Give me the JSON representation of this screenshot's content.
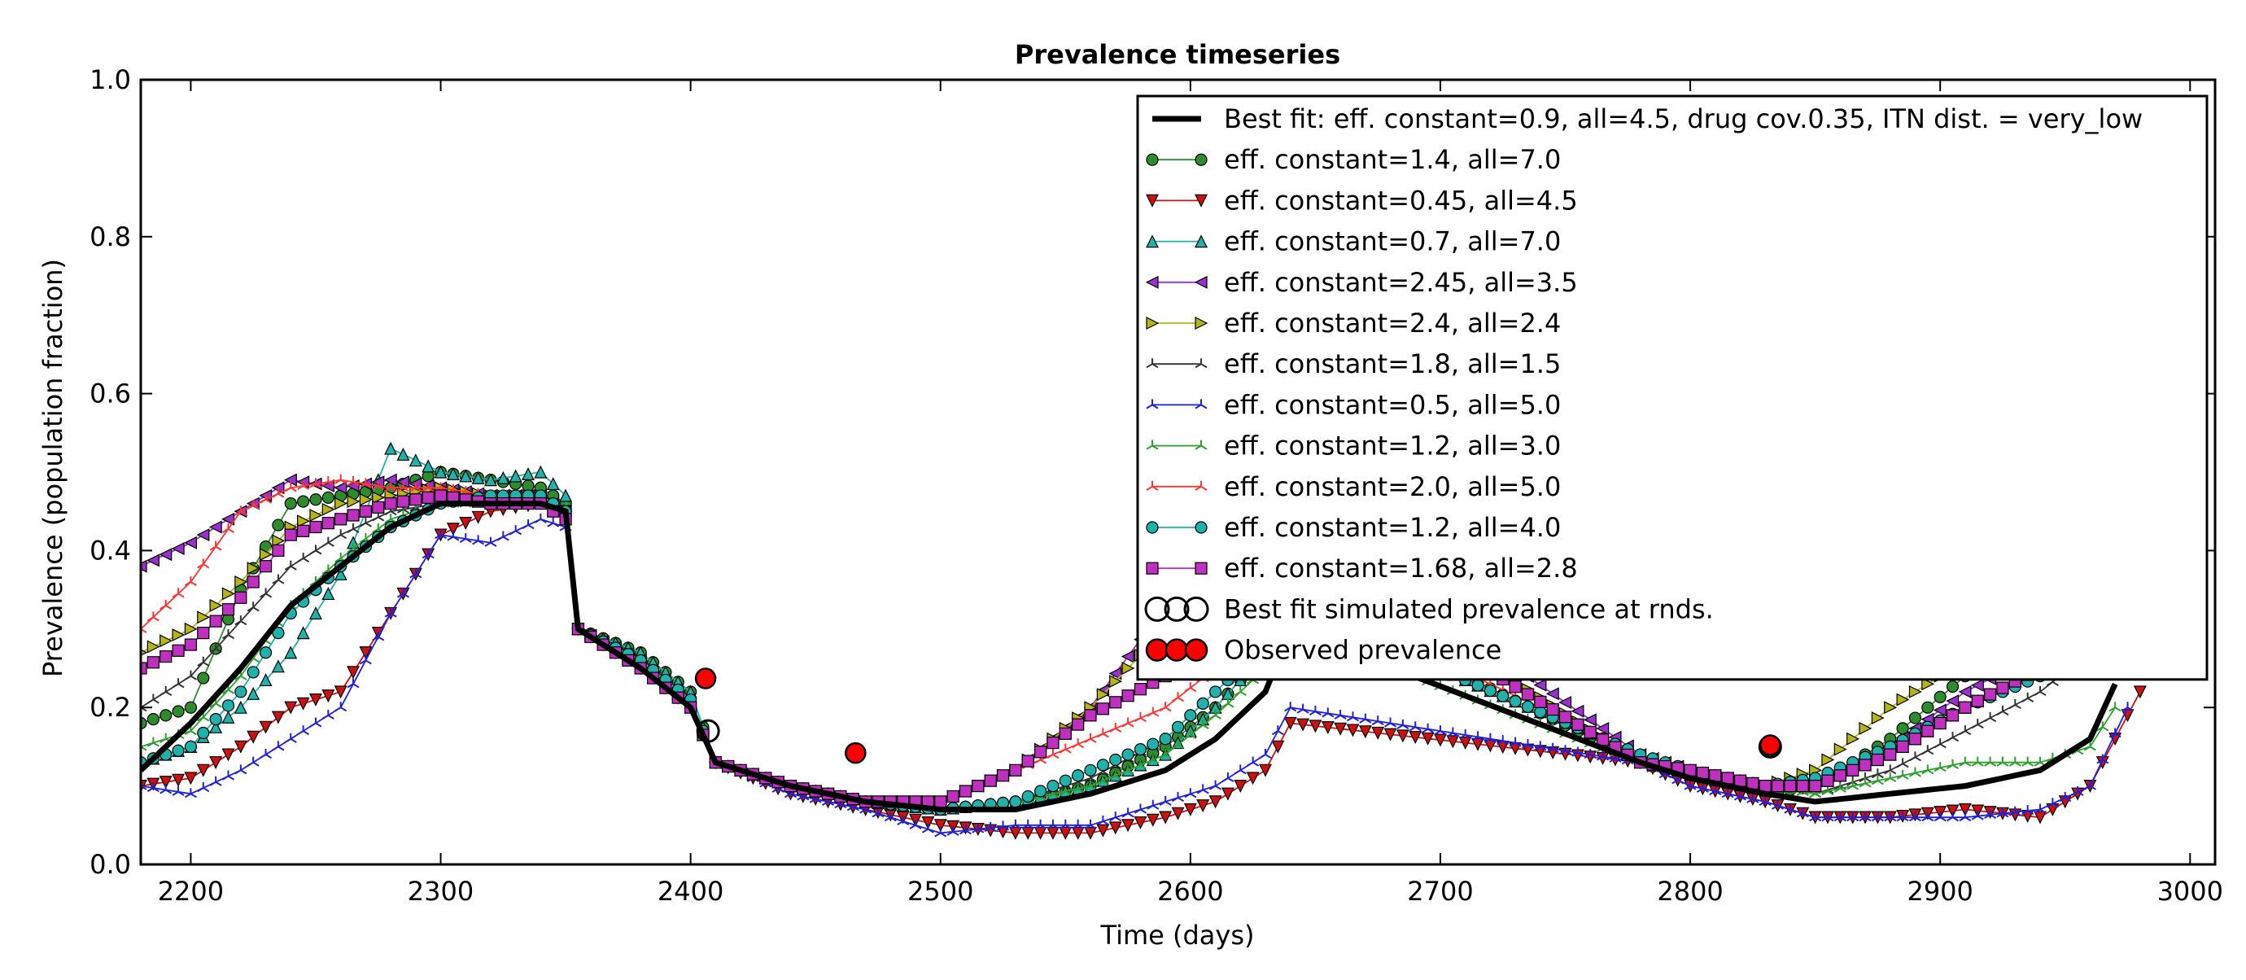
{
  "chart_data": {
    "type": "line",
    "title": "Prevalence timeseries",
    "xlabel": "Time (days)",
    "ylabel": "Prevalence (population fraction)",
    "xlim": [
      2180,
      3010
    ],
    "ylim": [
      0.0,
      1.0
    ],
    "xticks": [
      2200,
      2300,
      2400,
      2500,
      2600,
      2700,
      2800,
      2900,
      3000
    ],
    "xtick_labels": [
      "2200",
      "2300",
      "2400",
      "2500",
      "2600",
      "2700",
      "2800",
      "2900",
      "3000"
    ],
    "yticks": [
      0.0,
      0.2,
      0.4,
      0.6,
      0.8,
      1.0
    ],
    "ytick_labels": [
      "0.0",
      "0.2",
      "0.4",
      "0.6",
      "0.8",
      "1.0"
    ],
    "grid": false,
    "legend_position": "top-right",
    "series": [
      {
        "name": "Best fit: eff. constant=0.9, all=4.5, drug cov.0.35, ITN dist. = very_low",
        "color": "#000000",
        "marker": "none",
        "style": "bold",
        "x": [
          2180,
          2200,
          2220,
          2240,
          2260,
          2280,
          2300,
          2320,
          2340,
          2350,
          2355,
          2380,
          2400,
          2410,
          2440,
          2470,
          2500,
          2530,
          2560,
          2590,
          2610,
          2630,
          2640,
          2780,
          2800,
          2830,
          2850,
          2880,
          2910,
          2940,
          2960,
          2970
        ],
        "y": [
          0.12,
          0.18,
          0.25,
          0.33,
          0.38,
          0.43,
          0.46,
          0.46,
          0.46,
          0.45,
          0.3,
          0.25,
          0.2,
          0.13,
          0.1,
          0.08,
          0.07,
          0.07,
          0.09,
          0.12,
          0.16,
          0.22,
          0.3,
          0.13,
          0.11,
          0.09,
          0.08,
          0.09,
          0.1,
          0.12,
          0.16,
          0.23
        ]
      },
      {
        "name": "eff. constant=1.4, all=7.0",
        "color": "#2e8b2e",
        "marker": "circle",
        "x": [
          2180,
          2200,
          2220,
          2240,
          2260,
          2280,
          2300,
          2320,
          2340,
          2350,
          2355,
          2380,
          2400,
          2410,
          2440,
          2470,
          2500,
          2530,
          2560,
          2590,
          2610,
          2630,
          2640,
          2780,
          2800,
          2830,
          2850,
          2880,
          2910,
          2940,
          2960,
          2970
        ],
        "y": [
          0.18,
          0.2,
          0.35,
          0.46,
          0.47,
          0.48,
          0.5,
          0.49,
          0.48,
          0.46,
          0.3,
          0.27,
          0.22,
          0.13,
          0.1,
          0.08,
          0.07,
          0.08,
          0.1,
          0.15,
          0.2,
          0.27,
          0.35,
          0.13,
          0.11,
          0.09,
          0.1,
          0.16,
          0.24,
          0.3,
          0.33,
          0.35
        ]
      },
      {
        "name": "eff. constant=0.45, all=4.5",
        "color": "#cc1111",
        "marker": "triangle-down",
        "x": [
          2180,
          2200,
          2220,
          2240,
          2260,
          2280,
          2300,
          2320,
          2340,
          2350,
          2355,
          2380,
          2400,
          2410,
          2440,
          2470,
          2500,
          2530,
          2560,
          2590,
          2610,
          2630,
          2640,
          2780,
          2800,
          2830,
          2850,
          2880,
          2910,
          2940,
          2960,
          2980
        ],
        "y": [
          0.1,
          0.11,
          0.15,
          0.2,
          0.22,
          0.32,
          0.42,
          0.45,
          0.46,
          0.45,
          0.3,
          0.25,
          0.2,
          0.13,
          0.09,
          0.07,
          0.05,
          0.04,
          0.04,
          0.06,
          0.08,
          0.12,
          0.18,
          0.13,
          0.1,
          0.08,
          0.06,
          0.06,
          0.07,
          0.06,
          0.1,
          0.22
        ]
      },
      {
        "name": "eff. constant=0.7, all=7.0",
        "color": "#20b2aa",
        "marker": "triangle-up",
        "x": [
          2180,
          2200,
          2220,
          2240,
          2260,
          2280,
          2300,
          2320,
          2340,
          2350,
          2355,
          2380,
          2400,
          2410,
          2440,
          2470,
          2500,
          2530,
          2560,
          2590,
          2610,
          2630,
          2640,
          2780,
          2800,
          2830,
          2850,
          2880,
          2910,
          2940,
          2960,
          2970
        ],
        "y": [
          0.13,
          0.15,
          0.2,
          0.27,
          0.37,
          0.53,
          0.5,
          0.49,
          0.5,
          0.47,
          0.3,
          0.27,
          0.22,
          0.13,
          0.1,
          0.08,
          0.07,
          0.08,
          0.1,
          0.14,
          0.2,
          0.27,
          0.33,
          0.14,
          0.12,
          0.1,
          0.1,
          0.14,
          0.2,
          0.25,
          0.3,
          0.33
        ]
      },
      {
        "name": "eff. constant=2.45, all=3.5",
        "color": "#9932cc",
        "marker": "triangle-left",
        "x": [
          2180,
          2200,
          2220,
          2240,
          2260,
          2280,
          2300,
          2320,
          2340,
          2350,
          2355,
          2380,
          2400,
          2410,
          2440,
          2470,
          2500,
          2530,
          2560,
          2590,
          2610,
          2630,
          2640,
          2780,
          2800,
          2830,
          2850,
          2880,
          2910,
          2940,
          2960,
          2970
        ],
        "y": [
          0.38,
          0.41,
          0.45,
          0.49,
          0.48,
          0.49,
          0.48,
          0.47,
          0.47,
          0.45,
          0.3,
          0.26,
          0.2,
          0.13,
          0.1,
          0.08,
          0.08,
          0.12,
          0.2,
          0.33,
          0.38,
          0.42,
          0.45,
          0.14,
          0.12,
          0.1,
          0.1,
          0.15,
          0.22,
          0.27,
          0.31,
          0.34
        ]
      },
      {
        "name": "eff. constant=2.4, all=2.4",
        "color": "#b5b518",
        "marker": "triangle-right",
        "x": [
          2180,
          2200,
          2220,
          2240,
          2260,
          2280,
          2300,
          2320,
          2340,
          2350,
          2355,
          2380,
          2400,
          2410,
          2440,
          2470,
          2500,
          2530,
          2560,
          2590,
          2610,
          2630,
          2640,
          2780,
          2800,
          2830,
          2850,
          2880,
          2910,
          2940,
          2960,
          2970
        ],
        "y": [
          0.27,
          0.3,
          0.36,
          0.43,
          0.46,
          0.47,
          0.48,
          0.47,
          0.47,
          0.45,
          0.3,
          0.26,
          0.2,
          0.13,
          0.1,
          0.08,
          0.08,
          0.12,
          0.2,
          0.3,
          0.35,
          0.39,
          0.42,
          0.13,
          0.12,
          0.1,
          0.12,
          0.2,
          0.26,
          0.3,
          0.33,
          0.35
        ]
      },
      {
        "name": "eff. constant=1.8, all=1.5",
        "color": "#333333",
        "marker": "tri",
        "x": [
          2180,
          2200,
          2220,
          2240,
          2260,
          2280,
          2300,
          2320,
          2340,
          2350,
          2355,
          2380,
          2400,
          2410,
          2440,
          2470,
          2500,
          2530,
          2560,
          2590,
          2610,
          2630,
          2640,
          2780,
          2800,
          2830,
          2850,
          2880,
          2910,
          2940,
          2960,
          2970
        ],
        "y": [
          0.2,
          0.24,
          0.31,
          0.38,
          0.42,
          0.45,
          0.46,
          0.46,
          0.46,
          0.44,
          0.3,
          0.25,
          0.2,
          0.13,
          0.1,
          0.08,
          0.07,
          0.08,
          0.11,
          0.16,
          0.22,
          0.28,
          0.33,
          0.14,
          0.12,
          0.1,
          0.09,
          0.12,
          0.17,
          0.22,
          0.27,
          0.3
        ]
      },
      {
        "name": "eff. constant=0.5, all=5.0",
        "color": "#1f1fdd",
        "marker": "tri",
        "x": [
          2180,
          2200,
          2220,
          2240,
          2260,
          2280,
          2300,
          2320,
          2340,
          2350,
          2355,
          2380,
          2400,
          2410,
          2440,
          2470,
          2500,
          2530,
          2560,
          2590,
          2610,
          2630,
          2640,
          2780,
          2800,
          2830,
          2850,
          2880,
          2910,
          2940,
          2960,
          2975
        ],
        "y": [
          0.1,
          0.09,
          0.12,
          0.16,
          0.2,
          0.32,
          0.42,
          0.41,
          0.44,
          0.43,
          0.3,
          0.25,
          0.2,
          0.13,
          0.09,
          0.07,
          0.04,
          0.05,
          0.05,
          0.08,
          0.1,
          0.14,
          0.2,
          0.13,
          0.1,
          0.08,
          0.06,
          0.06,
          0.06,
          0.07,
          0.1,
          0.2
        ]
      },
      {
        "name": "eff. constant=1.2, all=3.0",
        "color": "#2ca02c",
        "marker": "tri",
        "x": [
          2180,
          2200,
          2220,
          2240,
          2260,
          2280,
          2300,
          2320,
          2340,
          2350,
          2355,
          2380,
          2400,
          2410,
          2440,
          2470,
          2500,
          2530,
          2560,
          2590,
          2610,
          2630,
          2640,
          2780,
          2800,
          2830,
          2850,
          2880,
          2910,
          2940,
          2960,
          2970
        ],
        "y": [
          0.15,
          0.17,
          0.24,
          0.33,
          0.39,
          0.44,
          0.46,
          0.46,
          0.46,
          0.44,
          0.3,
          0.25,
          0.2,
          0.13,
          0.1,
          0.08,
          0.07,
          0.08,
          0.1,
          0.14,
          0.19,
          0.25,
          0.3,
          0.13,
          0.12,
          0.1,
          0.09,
          0.11,
          0.13,
          0.13,
          0.15,
          0.2
        ]
      },
      {
        "name": "eff. constant=2.0, all=5.0",
        "color": "#ff3333",
        "marker": "tri",
        "x": [
          2180,
          2200,
          2220,
          2240,
          2260,
          2280,
          2300,
          2320,
          2340,
          2350,
          2355,
          2380,
          2400,
          2410,
          2440,
          2470,
          2500,
          2530,
          2560,
          2590,
          2610,
          2630,
          2640,
          2780,
          2800,
          2830,
          2850,
          2880,
          2910,
          2940,
          2960,
          2970
        ],
        "y": [
          0.3,
          0.36,
          0.45,
          0.48,
          0.49,
          0.48,
          0.48,
          0.47,
          0.46,
          0.45,
          0.3,
          0.25,
          0.2,
          0.13,
          0.1,
          0.08,
          0.08,
          0.12,
          0.16,
          0.2,
          0.25,
          0.3,
          0.35,
          0.14,
          0.12,
          0.1,
          0.1,
          0.14,
          0.2,
          0.25,
          0.29,
          0.32
        ]
      },
      {
        "name": "eff. constant=1.2, all=4.0",
        "color": "#20b2aa",
        "marker": "circle",
        "x": [
          2180,
          2200,
          2220,
          2240,
          2260,
          2280,
          2300,
          2320,
          2340,
          2350,
          2355,
          2380,
          2400,
          2410,
          2440,
          2470,
          2500,
          2530,
          2560,
          2590,
          2610,
          2630,
          2640,
          2780,
          2800,
          2830,
          2850,
          2880,
          2910,
          2940,
          2960,
          2970
        ],
        "y": [
          0.13,
          0.15,
          0.22,
          0.32,
          0.38,
          0.43,
          0.46,
          0.47,
          0.47,
          0.45,
          0.3,
          0.26,
          0.21,
          0.13,
          0.1,
          0.08,
          0.07,
          0.08,
          0.12,
          0.16,
          0.22,
          0.28,
          0.33,
          0.14,
          0.12,
          0.1,
          0.11,
          0.15,
          0.2,
          0.24,
          0.27,
          0.3
        ]
      },
      {
        "name": "eff. constant=1.68, all=2.8",
        "color": "#c030c0",
        "marker": "square",
        "x": [
          2180,
          2200,
          2220,
          2240,
          2260,
          2280,
          2300,
          2320,
          2340,
          2350,
          2355,
          2380,
          2400,
          2410,
          2440,
          2470,
          2500,
          2530,
          2560,
          2590,
          2610,
          2630,
          2640,
          2780,
          2800,
          2830,
          2850,
          2880,
          2910,
          2940,
          2960,
          2970
        ],
        "y": [
          0.25,
          0.28,
          0.34,
          0.42,
          0.44,
          0.46,
          0.47,
          0.46,
          0.46,
          0.44,
          0.3,
          0.25,
          0.2,
          0.13,
          0.1,
          0.08,
          0.08,
          0.12,
          0.19,
          0.24,
          0.3,
          0.35,
          0.4,
          0.13,
          0.12,
          0.1,
          0.1,
          0.14,
          0.2,
          0.25,
          0.29,
          0.32
        ]
      }
    ],
    "simulated_points": {
      "name": "Best fit simulated prevalence at rnds.",
      "x": [
        2407,
        2832
      ],
      "y": [
        0.17,
        0.15
      ]
    },
    "observed_points": {
      "name": "Observed prevalence",
      "color": "#ff0000",
      "x": [
        2406,
        2466,
        2832
      ],
      "y": [
        0.237,
        0.142,
        0.152
      ]
    }
  }
}
